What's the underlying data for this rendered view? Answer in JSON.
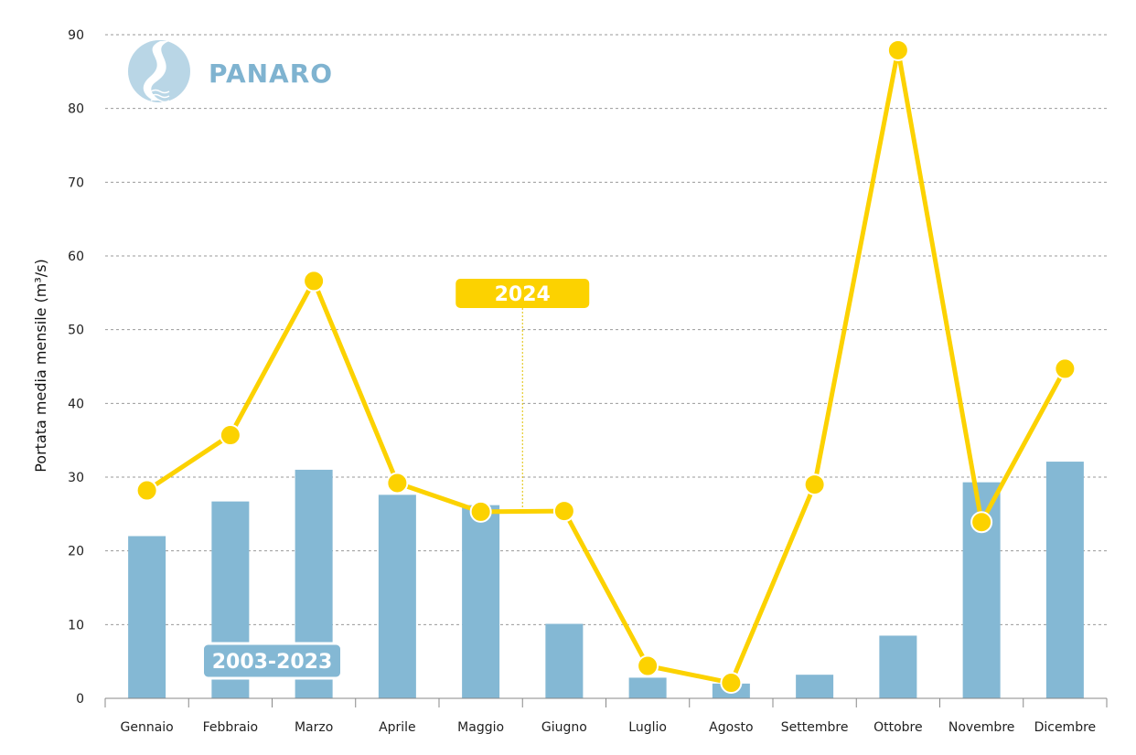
{
  "chart_data": {
    "type": "bar+line",
    "brand": "PANARO",
    "ylabel": "Portata media mensile (m³/s)",
    "xlabel": "",
    "ylim": [
      0,
      90
    ],
    "yticks": [
      0,
      10,
      20,
      30,
      40,
      50,
      60,
      70,
      80,
      90
    ],
    "grid": true,
    "categories": [
      "Gennaio",
      "Febbraio",
      "Marzo",
      "Aprile",
      "Maggio",
      "Giugno",
      "Luglio",
      "Agosto",
      "Settembre",
      "Ottobre",
      "Novembre",
      "Dicembre"
    ],
    "series": [
      {
        "name": "2003-2023",
        "kind": "bar",
        "color": "#84b8d4",
        "values": [
          22.0,
          26.7,
          31.0,
          27.6,
          26.2,
          10.1,
          2.8,
          2.0,
          3.2,
          8.5,
          29.3,
          32.1
        ]
      },
      {
        "name": "2024",
        "kind": "line",
        "color": "#fcd200",
        "values": [
          28.2,
          35.7,
          56.6,
          29.2,
          25.3,
          25.4,
          4.4,
          2.1,
          29.0,
          87.9,
          23.9,
          44.7
        ]
      }
    ],
    "colors": {
      "grid": "#9a9a9a",
      "axis": "#888888",
      "brand": "#7fb3d0",
      "logo": "#b9d6e6"
    },
    "icons": [
      "river-logo-icon"
    ]
  }
}
